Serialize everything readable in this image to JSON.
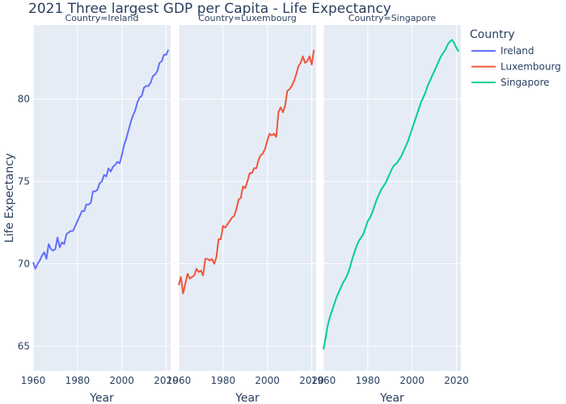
{
  "chart_data": {
    "type": "line",
    "title": "2021 Three largest GDP per Capita - Life Expectancy",
    "xlabel": "Year",
    "ylabel": "Life Expectancy",
    "xlim": [
      1960,
      2022
    ],
    "ylim": [
      63.5,
      84.5
    ],
    "xticks": [
      1960,
      1980,
      2000,
      2020
    ],
    "yticks": [
      65,
      70,
      75,
      80
    ],
    "legend_title": "Country",
    "legend_position": "top-right",
    "grid": true,
    "facets": [
      {
        "label": "Country=Ireland",
        "series": {
          "name": "Ireland",
          "color": "#636efa",
          "x": [
            1960,
            1961,
            1962,
            1963,
            1964,
            1965,
            1966,
            1967,
            1968,
            1969,
            1970,
            1971,
            1972,
            1973,
            1974,
            1975,
            1976,
            1977,
            1978,
            1979,
            1980,
            1981,
            1982,
            1983,
            1984,
            1985,
            1986,
            1987,
            1988,
            1989,
            1990,
            1991,
            1992,
            1993,
            1994,
            1995,
            1996,
            1997,
            1998,
            1999,
            2000,
            2001,
            2002,
            2003,
            2004,
            2005,
            2006,
            2007,
            2008,
            2009,
            2010,
            2011,
            2012,
            2013,
            2014,
            2015,
            2016,
            2017,
            2018,
            2019,
            2020,
            2021
          ],
          "y": [
            70.1,
            69.7,
            70.0,
            70.2,
            70.5,
            70.7,
            70.3,
            71.2,
            70.9,
            70.8,
            70.9,
            71.6,
            71.0,
            71.3,
            71.2,
            71.8,
            71.9,
            72.0,
            72.0,
            72.3,
            72.6,
            72.9,
            73.2,
            73.2,
            73.6,
            73.6,
            73.7,
            74.4,
            74.4,
            74.5,
            74.9,
            75.0,
            75.4,
            75.3,
            75.8,
            75.6,
            75.9,
            76.0,
            76.2,
            76.1,
            76.6,
            77.2,
            77.6,
            78.1,
            78.6,
            79.0,
            79.3,
            79.8,
            80.1,
            80.2,
            80.7,
            80.8,
            80.8,
            81.0,
            81.4,
            81.5,
            81.7,
            82.2,
            82.3,
            82.7,
            82.7,
            83.0
          ]
        }
      },
      {
        "label": "Country=Luxembourg",
        "series": {
          "name": "Luxembourg",
          "color": "#ef553b",
          "x": [
            1960,
            1961,
            1962,
            1963,
            1964,
            1965,
            1966,
            1967,
            1968,
            1969,
            1970,
            1971,
            1972,
            1973,
            1974,
            1975,
            1976,
            1977,
            1978,
            1979,
            1980,
            1981,
            1982,
            1983,
            1984,
            1985,
            1986,
            1987,
            1988,
            1989,
            1990,
            1991,
            1992,
            1993,
            1994,
            1995,
            1996,
            1997,
            1998,
            1999,
            2000,
            2001,
            2002,
            2003,
            2004,
            2005,
            2006,
            2007,
            2008,
            2009,
            2010,
            2011,
            2012,
            2013,
            2014,
            2015,
            2016,
            2017,
            2018,
            2019,
            2020,
            2021
          ],
          "y": [
            68.7,
            69.2,
            68.2,
            68.8,
            69.4,
            69.1,
            69.2,
            69.3,
            69.7,
            69.5,
            69.6,
            69.3,
            70.3,
            70.3,
            70.2,
            70.3,
            70.0,
            70.4,
            71.5,
            71.5,
            72.3,
            72.2,
            72.4,
            72.6,
            72.8,
            72.9,
            73.3,
            73.9,
            74.0,
            74.7,
            74.6,
            75.0,
            75.5,
            75.5,
            75.8,
            75.8,
            76.3,
            76.6,
            76.7,
            77.0,
            77.5,
            77.9,
            77.8,
            77.9,
            77.7,
            79.2,
            79.5,
            79.2,
            79.6,
            80.5,
            80.6,
            80.8,
            81.1,
            81.5,
            82.0,
            82.2,
            82.6,
            82.2,
            82.3,
            82.6,
            82.1,
            83.0
          ]
        }
      },
      {
        "label": "Country=Singapore",
        "series": {
          "name": "Singapore",
          "color": "#00cc96",
          "x": [
            1960,
            1961,
            1962,
            1963,
            1964,
            1965,
            1966,
            1967,
            1968,
            1969,
            1970,
            1971,
            1972,
            1973,
            1974,
            1975,
            1976,
            1977,
            1978,
            1979,
            1980,
            1981,
            1982,
            1983,
            1984,
            1985,
            1986,
            1987,
            1988,
            1989,
            1990,
            1991,
            1992,
            1993,
            1994,
            1995,
            1996,
            1997,
            1998,
            1999,
            2000,
            2001,
            2002,
            2003,
            2004,
            2005,
            2006,
            2007,
            2008,
            2009,
            2010,
            2011,
            2012,
            2013,
            2014,
            2015,
            2016,
            2017,
            2018,
            2019,
            2020,
            2021
          ],
          "y": [
            64.8,
            65.5,
            66.3,
            66.8,
            67.2,
            67.6,
            68.0,
            68.3,
            68.6,
            68.9,
            69.1,
            69.4,
            69.8,
            70.3,
            70.7,
            71.1,
            71.4,
            71.6,
            71.8,
            72.2,
            72.6,
            72.8,
            73.1,
            73.5,
            73.9,
            74.2,
            74.5,
            74.7,
            74.9,
            75.2,
            75.5,
            75.8,
            76.0,
            76.1,
            76.3,
            76.5,
            76.8,
            77.1,
            77.4,
            77.8,
            78.2,
            78.6,
            79.0,
            79.4,
            79.8,
            80.1,
            80.4,
            80.8,
            81.1,
            81.4,
            81.7,
            82.0,
            82.3,
            82.6,
            82.8,
            83.0,
            83.3,
            83.5,
            83.6,
            83.4,
            83.1,
            82.9
          ]
        }
      }
    ]
  }
}
